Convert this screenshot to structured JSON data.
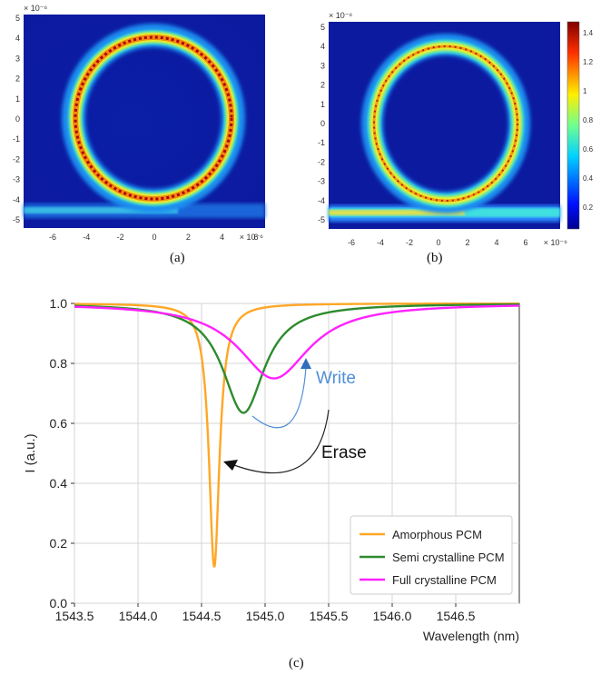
{
  "captions": {
    "a": "(a)",
    "b": "(b)",
    "c": "(c)"
  },
  "heatmap_a": {
    "exponent_label": "× 10⁻⁶",
    "yticks": [
      "5",
      "4",
      "3",
      "2",
      "1",
      "0",
      "-1",
      "-2",
      "-3",
      "-4",
      "-5"
    ],
    "xticks": [
      "-6",
      "-4",
      "-2",
      "0",
      "2",
      "4",
      "6"
    ],
    "x_exponent_label": "× 10⁻⁶"
  },
  "heatmap_b": {
    "exponent_label": "× 10⁻⁶",
    "yticks": [
      "5",
      "4",
      "3",
      "2",
      "1",
      "0",
      "-1",
      "-2",
      "-3",
      "-4",
      "-5"
    ],
    "xticks": [
      "-6",
      "-4",
      "-2",
      "0",
      "2",
      "4",
      "6"
    ],
    "x_exponent_label": "× 10⁻⁶",
    "colorbar_ticks": [
      "1.4",
      "1.2",
      "1",
      "0.8",
      "0.6",
      "0.4",
      "0.2"
    ]
  },
  "chart_data": {
    "type": "line",
    "title": "",
    "xlabel": "Wavelength (nm)",
    "ylabel": "I (a.u.)",
    "xlim": [
      1543.5,
      1547.0
    ],
    "ylim": [
      0.0,
      1.0
    ],
    "xticks": [
      "1543.5",
      "1544.0",
      "1544.5",
      "1545.0",
      "1545.5",
      "1546.0",
      "1546.5"
    ],
    "yticks": [
      "0.0",
      "0.2",
      "0.4",
      "0.6",
      "0.8",
      "1.0"
    ],
    "grid": true,
    "legend_position": "bottom-right",
    "series": [
      {
        "name": "Amorphous PCM",
        "color": "#ffa726",
        "center": 1544.6,
        "min": 0.12,
        "halfwidth": 0.05
      },
      {
        "name": "Semi crystalline PCM",
        "color": "#2e8b2e",
        "center": 1544.83,
        "min": 0.635,
        "halfwidth": 0.2
      },
      {
        "name": "Full  crystalline PCM",
        "color": "#ff22ff",
        "center": 1545.07,
        "min": 0.75,
        "halfwidth": 0.34
      }
    ],
    "annotations": [
      {
        "text": "Write",
        "color": "#4f8fd6"
      },
      {
        "text": "Erase",
        "color": "#111111"
      }
    ]
  }
}
